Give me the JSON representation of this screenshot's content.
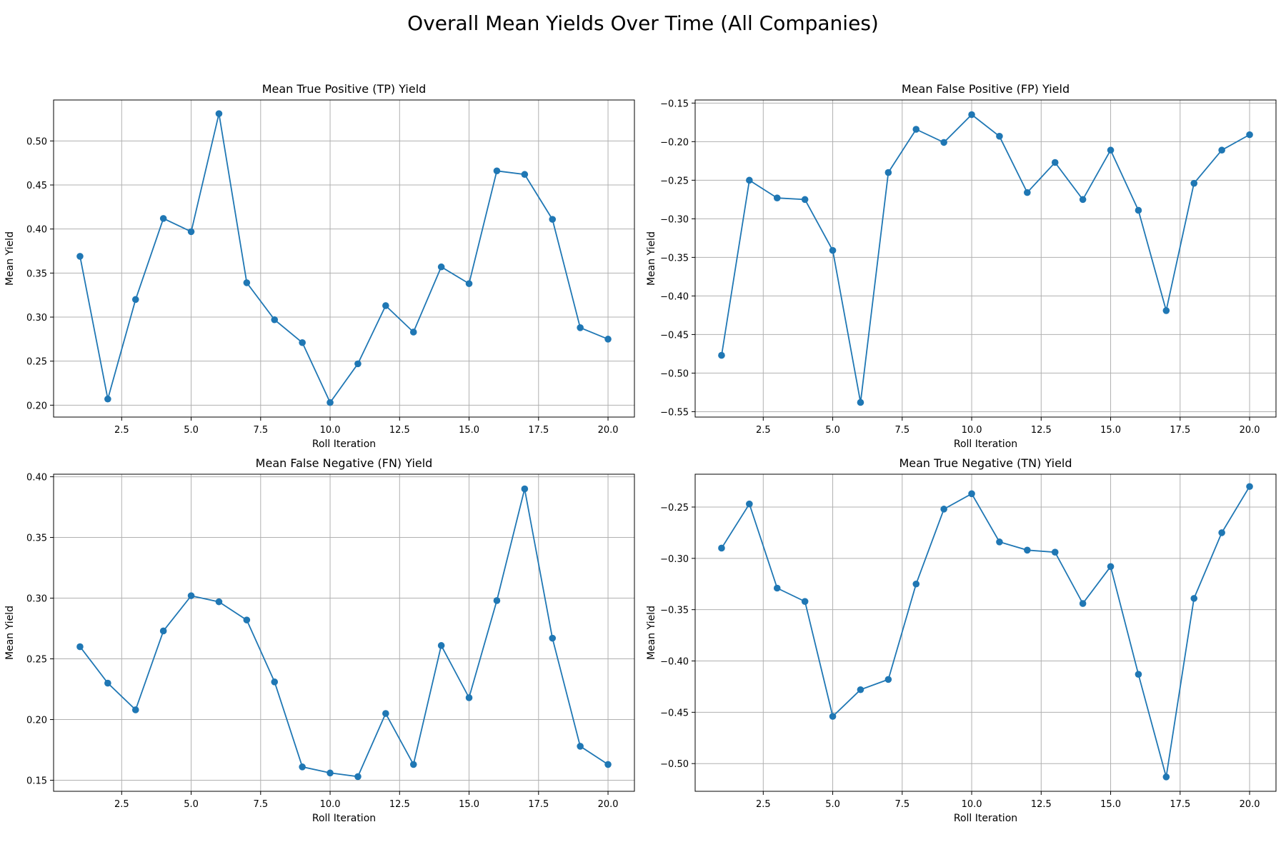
{
  "figure": {
    "suptitle": "Overall Mean Yields Over Time (All Companies)"
  },
  "style": {
    "line_color": "#1f77b4",
    "grid_color": "#b0b0b0",
    "axis_color": "#000000"
  },
  "chart_data": [
    {
      "type": "line",
      "title": "Mean True Positive (TP) Yield",
      "xlabel": "Roll Iteration",
      "ylabel": "Mean Yield",
      "grid": true,
      "marker": "circle",
      "xlim": [
        0.05,
        20.95
      ],
      "ylim": [
        0.1865,
        0.5465
      ],
      "xticks": [
        "2.5",
        "5.0",
        "7.5",
        "10.0",
        "12.5",
        "15.0",
        "17.5",
        "20.0"
      ],
      "xtick_values": [
        2.5,
        5.0,
        7.5,
        10.0,
        12.5,
        15.0,
        17.5,
        20.0
      ],
      "yticks": [
        "0.20",
        "0.25",
        "0.30",
        "0.35",
        "0.40",
        "0.45",
        "0.50"
      ],
      "ytick_values": [
        0.2,
        0.25,
        0.3,
        0.35,
        0.4,
        0.45,
        0.5
      ],
      "x": [
        1,
        2,
        3,
        4,
        5,
        6,
        7,
        8,
        9,
        10,
        11,
        12,
        13,
        14,
        15,
        16,
        17,
        18,
        19,
        20
      ],
      "y": [
        0.369,
        0.207,
        0.32,
        0.412,
        0.397,
        0.531,
        0.339,
        0.297,
        0.271,
        0.203,
        0.247,
        0.313,
        0.283,
        0.357,
        0.338,
        0.466,
        0.462,
        0.411,
        0.288,
        0.275
      ]
    },
    {
      "type": "line",
      "title": "Mean False Positive (FP) Yield",
      "xlabel": "Roll Iteration",
      "ylabel": "Mean Yield",
      "grid": true,
      "marker": "circle",
      "xlim": [
        0.05,
        20.95
      ],
      "ylim": [
        -0.557,
        -0.146
      ],
      "xticks": [
        "2.5",
        "5.0",
        "7.5",
        "10.0",
        "12.5",
        "15.0",
        "17.5",
        "20.0"
      ],
      "xtick_values": [
        2.5,
        5.0,
        7.5,
        10.0,
        12.5,
        15.0,
        17.5,
        20.0
      ],
      "yticks": [
        "−0.55",
        "−0.50",
        "−0.45",
        "−0.40",
        "−0.35",
        "−0.30",
        "−0.25",
        "−0.20",
        "−0.15"
      ],
      "ytick_values": [
        -0.55,
        -0.5,
        -0.45,
        -0.4,
        -0.35,
        -0.3,
        -0.25,
        -0.2,
        -0.15
      ],
      "x": [
        1,
        2,
        3,
        4,
        5,
        6,
        7,
        8,
        9,
        10,
        11,
        12,
        13,
        14,
        15,
        16,
        17,
        18,
        19,
        20
      ],
      "y": [
        -0.477,
        -0.25,
        -0.273,
        -0.275,
        -0.341,
        -0.538,
        -0.24,
        -0.184,
        -0.201,
        -0.165,
        -0.193,
        -0.266,
        -0.227,
        -0.275,
        -0.211,
        -0.289,
        -0.419,
        -0.254,
        -0.211,
        -0.191
      ]
    },
    {
      "type": "line",
      "title": "Mean False Negative (FN) Yield",
      "xlabel": "Roll Iteration",
      "ylabel": "Mean Yield",
      "grid": true,
      "marker": "circle",
      "xlim": [
        0.05,
        20.95
      ],
      "ylim": [
        0.1409,
        0.4021
      ],
      "xticks": [
        "2.5",
        "5.0",
        "7.5",
        "10.0",
        "12.5",
        "15.0",
        "17.5",
        "20.0"
      ],
      "xtick_values": [
        2.5,
        5.0,
        7.5,
        10.0,
        12.5,
        15.0,
        17.5,
        20.0
      ],
      "yticks": [
        "0.15",
        "0.20",
        "0.25",
        "0.30",
        "0.35",
        "0.40"
      ],
      "ytick_values": [
        0.15,
        0.2,
        0.25,
        0.3,
        0.35,
        0.4
      ],
      "x": [
        1,
        2,
        3,
        4,
        5,
        6,
        7,
        8,
        9,
        10,
        11,
        12,
        13,
        14,
        15,
        16,
        17,
        18,
        19,
        20
      ],
      "y": [
        0.26,
        0.23,
        0.208,
        0.273,
        0.302,
        0.297,
        0.282,
        0.231,
        0.161,
        0.156,
        0.153,
        0.205,
        0.163,
        0.261,
        0.218,
        0.298,
        0.39,
        0.267,
        0.178,
        0.163
      ]
    },
    {
      "type": "line",
      "title": "Mean True Negative (TN) Yield",
      "xlabel": "Roll Iteration",
      "ylabel": "Mean Yield",
      "grid": true,
      "marker": "circle",
      "xlim": [
        0.05,
        20.95
      ],
      "ylim": [
        -0.527,
        -0.218
      ],
      "xticks": [
        "2.5",
        "5.0",
        "7.5",
        "10.0",
        "12.5",
        "15.0",
        "17.5",
        "20.0"
      ],
      "xtick_values": [
        2.5,
        5.0,
        7.5,
        10.0,
        12.5,
        15.0,
        17.5,
        20.0
      ],
      "yticks": [
        "−0.50",
        "−0.45",
        "−0.40",
        "−0.35",
        "−0.30",
        "−0.25"
      ],
      "ytick_values": [
        -0.5,
        -0.45,
        -0.4,
        -0.35,
        -0.3,
        -0.25
      ],
      "x": [
        1,
        2,
        3,
        4,
        5,
        6,
        7,
        8,
        9,
        10,
        11,
        12,
        13,
        14,
        15,
        16,
        17,
        18,
        19,
        20
      ],
      "y": [
        -0.29,
        -0.247,
        -0.329,
        -0.342,
        -0.454,
        -0.428,
        -0.418,
        -0.325,
        -0.252,
        -0.237,
        -0.284,
        -0.292,
        -0.294,
        -0.344,
        -0.308,
        -0.413,
        -0.513,
        -0.339,
        -0.275,
        -0.23
      ]
    }
  ]
}
